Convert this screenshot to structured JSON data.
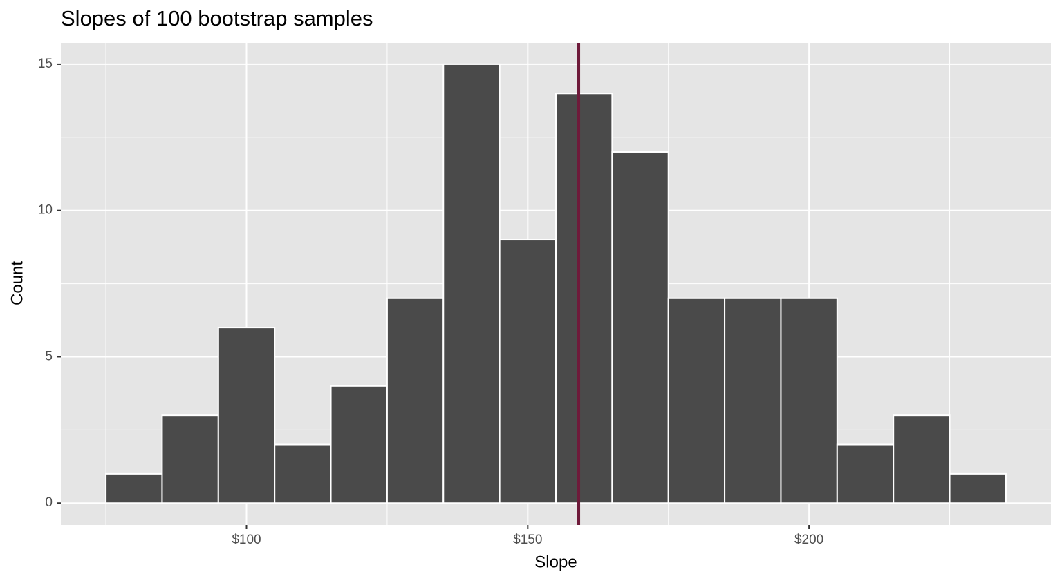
{
  "chart_data": {
    "type": "histogram",
    "title": "Slopes of 100 bootstrap samples",
    "x_label": "Slope",
    "y_label": "Count",
    "bins": [
      75,
      85,
      95,
      105,
      115,
      125,
      135,
      145,
      155,
      165,
      175,
      185,
      195,
      205,
      215,
      225,
      235
    ],
    "counts": [
      1,
      3,
      6,
      2,
      4,
      7,
      15,
      9,
      14,
      12,
      7,
      7,
      7,
      2,
      3,
      1
    ],
    "color": "#4a4a4a",
    "edge_color": "#ffffff",
    "xlim": [
      67,
      243
    ],
    "ylim": [
      -0.75,
      15.73
    ],
    "xticks": [
      {
        "value": 100,
        "label": "$100"
      },
      {
        "value": 150,
        "label": "$150"
      },
      {
        "value": 200,
        "label": "$200"
      }
    ],
    "yticks": [
      0,
      5,
      10,
      15
    ],
    "x_minor_ticks": [
      75,
      125,
      175,
      225
    ],
    "y_minor_ticks": [
      2.5,
      7.5,
      12.5
    ],
    "vline": {
      "value": 159,
      "color": "#6e1a3a"
    },
    "grid": true,
    "panel_color": "#e5e5e5"
  }
}
